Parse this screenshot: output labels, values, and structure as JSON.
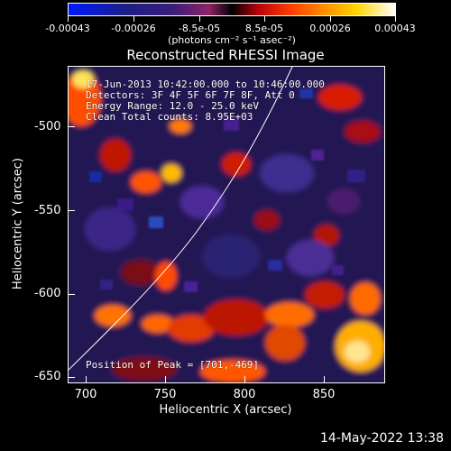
{
  "colorbar": {
    "ticks": [
      "-0.00043",
      "-0.00026",
      "-8.5e-05",
      "8.5e-05",
      "0.00026",
      "0.00043"
    ],
    "unit_label": "(photons cm⁻² s⁻¹ asec⁻²)"
  },
  "plot": {
    "title": "Reconstructed RHESSI Image",
    "x_label": "Heliocentric X (arcsec)",
    "y_label": "Heliocentric Y (arcsec)",
    "x_ticks": [
      "700",
      "750",
      "800",
      "850"
    ],
    "y_ticks": [
      "-500",
      "-550",
      "-600",
      "-650"
    ],
    "overlay_lines": [
      "17-Jun-2013 10:42:00.000 to 10:46:00.000",
      "Detectors: 3F 4F 5F 6F 7F 8F, Att 0",
      "Energy Range: 12.0 - 25.0 keV",
      "Clean    Total counts: 8.95E+03"
    ],
    "peak_text": "Position of Peak = [701,-469]"
  },
  "footer": {
    "stamp": "14-May-2022 13:38"
  },
  "colors": {
    "background": "#000000",
    "foreground": "#ffffff"
  }
}
